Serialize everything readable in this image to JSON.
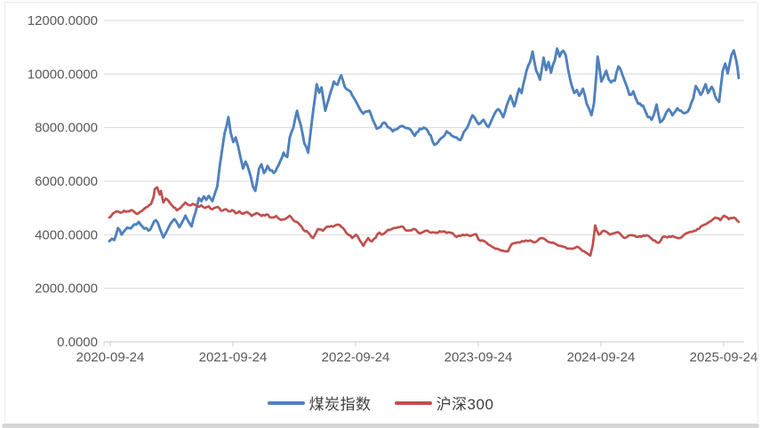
{
  "chart_data": {
    "type": "line",
    "title": "",
    "xlabel": "",
    "ylabel": "",
    "x_unit": "years_since_2020-09-24",
    "ylim": [
      0,
      12000
    ],
    "y_tick_step": 2000,
    "y_tick_labels": [
      "0.0000",
      "2000.0000",
      "4000.0000",
      "6000.0000",
      "8000.0000",
      "10000.0000",
      "12000.0000"
    ],
    "x_tick_labels": [
      "2020-09-24",
      "2021-09-24",
      "2022-09-24",
      "2023-09-24",
      "2024-09-24",
      "2025-09-24"
    ],
    "grid": "horizontal",
    "legend_position": "bottom-center",
    "colors": {
      "gridline": "#d9d9d9",
      "axis": "#d4d4d4",
      "tick_text": "#595959"
    },
    "series": [
      {
        "name": "煤炭指数",
        "color": "#4F81BD",
        "points": [
          [
            0.0,
            3760
          ],
          [
            0.02,
            3850
          ],
          [
            0.04,
            3800
          ],
          [
            0.07,
            4250
          ],
          [
            0.1,
            4000
          ],
          [
            0.13,
            4180
          ],
          [
            0.16,
            4250
          ],
          [
            0.19,
            4320
          ],
          [
            0.22,
            4380
          ],
          [
            0.24,
            4480
          ],
          [
            0.27,
            4300
          ],
          [
            0.3,
            4250
          ],
          [
            0.32,
            4150
          ],
          [
            0.35,
            4350
          ],
          [
            0.38,
            4540
          ],
          [
            0.41,
            4250
          ],
          [
            0.44,
            3900
          ],
          [
            0.47,
            4150
          ],
          [
            0.5,
            4420
          ],
          [
            0.53,
            4580
          ],
          [
            0.57,
            4280
          ],
          [
            0.6,
            4520
          ],
          [
            0.62,
            4710
          ],
          [
            0.65,
            4450
          ],
          [
            0.67,
            4310
          ],
          [
            0.7,
            4800
          ],
          [
            0.73,
            5370
          ],
          [
            0.75,
            5250
          ],
          [
            0.77,
            5430
          ],
          [
            0.79,
            5300
          ],
          [
            0.81,
            5450
          ],
          [
            0.84,
            5250
          ],
          [
            0.86,
            5540
          ],
          [
            0.88,
            5800
          ],
          [
            0.9,
            6570
          ],
          [
            0.92,
            7200
          ],
          [
            0.94,
            7800
          ],
          [
            0.97,
            8390
          ],
          [
            0.99,
            7790
          ],
          [
            1.01,
            7460
          ],
          [
            1.03,
            7630
          ],
          [
            1.05,
            7290
          ],
          [
            1.07,
            6860
          ],
          [
            1.09,
            6470
          ],
          [
            1.11,
            6730
          ],
          [
            1.14,
            6370
          ],
          [
            1.17,
            5800
          ],
          [
            1.19,
            5640
          ],
          [
            1.22,
            6470
          ],
          [
            1.24,
            6630
          ],
          [
            1.26,
            6300
          ],
          [
            1.29,
            6570
          ],
          [
            1.31,
            6400
          ],
          [
            1.34,
            6300
          ],
          [
            1.38,
            6600
          ],
          [
            1.42,
            7065
          ],
          [
            1.45,
            6900
          ],
          [
            1.47,
            7630
          ],
          [
            1.5,
            8000
          ],
          [
            1.53,
            8625
          ],
          [
            1.56,
            8100
          ],
          [
            1.59,
            7400
          ],
          [
            1.62,
            7065
          ],
          [
            1.65,
            8200
          ],
          [
            1.69,
            9620
          ],
          [
            1.71,
            9300
          ],
          [
            1.73,
            9500
          ],
          [
            1.76,
            8630
          ],
          [
            1.79,
            9100
          ],
          [
            1.83,
            9720
          ],
          [
            1.86,
            9600
          ],
          [
            1.89,
            9950
          ],
          [
            1.92,
            9500
          ],
          [
            1.95,
            9390
          ],
          [
            1.98,
            9200
          ],
          [
            2.0,
            9060
          ],
          [
            2.03,
            8800
          ],
          [
            2.07,
            8520
          ],
          [
            2.12,
            8630
          ],
          [
            2.18,
            7960
          ],
          [
            2.24,
            8190
          ],
          [
            2.31,
            7860
          ],
          [
            2.38,
            8060
          ],
          [
            2.46,
            7900
          ],
          [
            2.49,
            7690
          ],
          [
            2.53,
            7960
          ],
          [
            2.58,
            7960
          ],
          [
            2.62,
            7700
          ],
          [
            2.65,
            7360
          ],
          [
            2.68,
            7460
          ],
          [
            2.72,
            7650
          ],
          [
            2.75,
            7860
          ],
          [
            2.79,
            7700
          ],
          [
            2.83,
            7630
          ],
          [
            2.86,
            7530
          ],
          [
            2.9,
            7900
          ],
          [
            2.93,
            8130
          ],
          [
            2.96,
            8460
          ],
          [
            3.01,
            8130
          ],
          [
            3.05,
            8290
          ],
          [
            3.09,
            8020
          ],
          [
            3.14,
            8520
          ],
          [
            3.17,
            8690
          ],
          [
            3.21,
            8390
          ],
          [
            3.25,
            8960
          ],
          [
            3.27,
            9190
          ],
          [
            3.3,
            8790
          ],
          [
            3.34,
            9450
          ],
          [
            3.36,
            9290
          ],
          [
            3.4,
            10120
          ],
          [
            3.43,
            10450
          ],
          [
            3.45,
            10840
          ],
          [
            3.48,
            10120
          ],
          [
            3.51,
            9790
          ],
          [
            3.54,
            10610
          ],
          [
            3.56,
            10150
          ],
          [
            3.58,
            10450
          ],
          [
            3.6,
            10050
          ],
          [
            3.63,
            10500
          ],
          [
            3.65,
            10950
          ],
          [
            3.67,
            10650
          ],
          [
            3.7,
            10870
          ],
          [
            3.72,
            10700
          ],
          [
            3.74,
            10150
          ],
          [
            3.76,
            9720
          ],
          [
            3.79,
            9290
          ],
          [
            3.81,
            9400
          ],
          [
            3.83,
            9190
          ],
          [
            3.86,
            9450
          ],
          [
            3.89,
            8900
          ],
          [
            3.91,
            8700
          ],
          [
            3.93,
            8460
          ],
          [
            3.95,
            8900
          ],
          [
            3.97,
            10000
          ],
          [
            3.98,
            10650
          ],
          [
            3.99,
            10400
          ],
          [
            4.01,
            9720
          ],
          [
            4.03,
            9900
          ],
          [
            4.05,
            10120
          ],
          [
            4.07,
            9800
          ],
          [
            4.09,
            9690
          ],
          [
            4.12,
            9750
          ],
          [
            4.15,
            10280
          ],
          [
            4.18,
            10000
          ],
          [
            4.2,
            9750
          ],
          [
            4.22,
            9500
          ],
          [
            4.24,
            9220
          ],
          [
            4.27,
            9350
          ],
          [
            4.29,
            9100
          ],
          [
            4.31,
            8890
          ],
          [
            4.35,
            8820
          ],
          [
            4.37,
            8600
          ],
          [
            4.39,
            8390
          ],
          [
            4.42,
            8290
          ],
          [
            4.44,
            8500
          ],
          [
            4.46,
            8860
          ],
          [
            4.48,
            8400
          ],
          [
            4.49,
            8200
          ],
          [
            4.52,
            8350
          ],
          [
            4.56,
            8690
          ],
          [
            4.59,
            8460
          ],
          [
            4.63,
            8720
          ],
          [
            4.66,
            8630
          ],
          [
            4.7,
            8560
          ],
          [
            4.73,
            8720
          ],
          [
            4.76,
            9100
          ],
          [
            4.78,
            9550
          ],
          [
            4.8,
            9400
          ],
          [
            4.82,
            9220
          ],
          [
            4.86,
            9620
          ],
          [
            4.88,
            9290
          ],
          [
            4.91,
            9520
          ],
          [
            4.95,
            9060
          ],
          [
            4.97,
            8960
          ],
          [
            5.0,
            10120
          ],
          [
            5.02,
            10390
          ],
          [
            5.04,
            10020
          ],
          [
            5.07,
            10700
          ],
          [
            5.09,
            10880
          ],
          [
            5.11,
            10500
          ],
          [
            5.12,
            10220
          ],
          [
            5.13,
            9850
          ]
        ]
      },
      {
        "name": "沪深300",
        "color": "#C0504D",
        "points": [
          [
            0.0,
            4640
          ],
          [
            0.03,
            4800
          ],
          [
            0.06,
            4875
          ],
          [
            0.09,
            4820
          ],
          [
            0.12,
            4900
          ],
          [
            0.15,
            4875
          ],
          [
            0.19,
            4900
          ],
          [
            0.22,
            4780
          ],
          [
            0.25,
            4850
          ],
          [
            0.28,
            4950
          ],
          [
            0.31,
            5040
          ],
          [
            0.34,
            5150
          ],
          [
            0.36,
            5400
          ],
          [
            0.37,
            5700
          ],
          [
            0.39,
            5770
          ],
          [
            0.41,
            5500
          ],
          [
            0.42,
            5640
          ],
          [
            0.44,
            5200
          ],
          [
            0.46,
            5350
          ],
          [
            0.48,
            5280
          ],
          [
            0.51,
            5100
          ],
          [
            0.55,
            4910
          ],
          [
            0.58,
            5000
          ],
          [
            0.62,
            5200
          ],
          [
            0.65,
            5100
          ],
          [
            0.68,
            5150
          ],
          [
            0.72,
            5050
          ],
          [
            0.75,
            5100
          ],
          [
            0.78,
            5000
          ],
          [
            0.81,
            5060
          ],
          [
            0.84,
            4950
          ],
          [
            0.88,
            5040
          ],
          [
            0.91,
            4900
          ],
          [
            0.94,
            4950
          ],
          [
            0.97,
            4875
          ],
          [
            1.0,
            4920
          ],
          [
            1.03,
            4800
          ],
          [
            1.06,
            4875
          ],
          [
            1.09,
            4780
          ],
          [
            1.12,
            4850
          ],
          [
            1.16,
            4700
          ],
          [
            1.2,
            4810
          ],
          [
            1.24,
            4700
          ],
          [
            1.28,
            4760
          ],
          [
            1.32,
            4640
          ],
          [
            1.36,
            4700
          ],
          [
            1.4,
            4550
          ],
          [
            1.44,
            4600
          ],
          [
            1.47,
            4710
          ],
          [
            1.51,
            4500
          ],
          [
            1.55,
            4380
          ],
          [
            1.58,
            4200
          ],
          [
            1.62,
            4080
          ],
          [
            1.66,
            3880
          ],
          [
            1.7,
            4210
          ],
          [
            1.74,
            4150
          ],
          [
            1.78,
            4310
          ],
          [
            1.82,
            4300
          ],
          [
            1.86,
            4380
          ],
          [
            1.89,
            4300
          ],
          [
            1.93,
            4080
          ],
          [
            1.98,
            3880
          ],
          [
            2.01,
            4000
          ],
          [
            2.04,
            3800
          ],
          [
            2.07,
            3580
          ],
          [
            2.11,
            3880
          ],
          [
            2.14,
            3750
          ],
          [
            2.2,
            4080
          ],
          [
            2.22,
            4000
          ],
          [
            2.27,
            4180
          ],
          [
            2.33,
            4250
          ],
          [
            2.38,
            4310
          ],
          [
            2.43,
            4150
          ],
          [
            2.49,
            4210
          ],
          [
            2.53,
            4050
          ],
          [
            2.58,
            4150
          ],
          [
            2.65,
            4080
          ],
          [
            2.72,
            4120
          ],
          [
            2.8,
            4050
          ],
          [
            2.83,
            3915
          ],
          [
            2.88,
            4000
          ],
          [
            2.94,
            3950
          ],
          [
            2.99,
            4020
          ],
          [
            3.01,
            3815
          ],
          [
            3.07,
            3715
          ],
          [
            3.12,
            3550
          ],
          [
            3.16,
            3480
          ],
          [
            3.21,
            3400
          ],
          [
            3.25,
            3380
          ],
          [
            3.28,
            3650
          ],
          [
            3.33,
            3715
          ],
          [
            3.38,
            3750
          ],
          [
            3.43,
            3790
          ],
          [
            3.47,
            3715
          ],
          [
            3.52,
            3880
          ],
          [
            3.57,
            3750
          ],
          [
            3.62,
            3700
          ],
          [
            3.64,
            3650
          ],
          [
            3.7,
            3550
          ],
          [
            3.76,
            3480
          ],
          [
            3.81,
            3550
          ],
          [
            3.87,
            3380
          ],
          [
            3.91,
            3250
          ],
          [
            3.92,
            3220
          ],
          [
            3.94,
            3600
          ],
          [
            3.96,
            4350
          ],
          [
            3.99,
            4000
          ],
          [
            4.03,
            4150
          ],
          [
            4.08,
            4000
          ],
          [
            4.13,
            4080
          ],
          [
            4.16,
            4050
          ],
          [
            4.2,
            3880
          ],
          [
            4.25,
            3980
          ],
          [
            4.31,
            3920
          ],
          [
            4.38,
            3980
          ],
          [
            4.42,
            3850
          ],
          [
            4.46,
            3715
          ],
          [
            4.48,
            3700
          ],
          [
            4.51,
            3920
          ],
          [
            4.55,
            3900
          ],
          [
            4.59,
            3950
          ],
          [
            4.65,
            3880
          ],
          [
            4.7,
            4050
          ],
          [
            4.78,
            4150
          ],
          [
            4.85,
            4380
          ],
          [
            4.89,
            4480
          ],
          [
            4.94,
            4640
          ],
          [
            4.98,
            4540
          ],
          [
            5.01,
            4710
          ],
          [
            5.05,
            4580
          ],
          [
            5.09,
            4640
          ],
          [
            5.13,
            4480
          ]
        ]
      }
    ]
  }
}
